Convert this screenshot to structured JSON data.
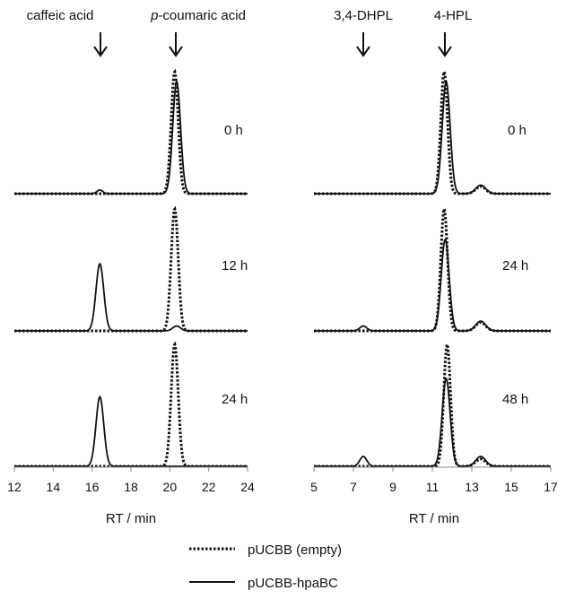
{
  "chart_data": [
    {
      "type": "line",
      "panel": "left",
      "xlabel": "RT / min",
      "xlim": [
        12,
        24
      ],
      "xticks": [
        "12",
        "14",
        "16",
        "18",
        "20",
        "22",
        "24"
      ],
      "markers": [
        {
          "label": "caffeic acid",
          "x": 16.4
        },
        {
          "label": "p-coumaric acid",
          "italic_prefix": "p",
          "rest": "-coumaric acid",
          "x": 20.3
        }
      ],
      "traces": [
        {
          "time_label": "0 h",
          "series": [
            {
              "name": "pUCBB (empty)",
              "style": "dotted",
              "peaks": [
                {
                  "x": 20.25,
                  "height": 1.0,
                  "width": 0.18
                }
              ]
            },
            {
              "name": "pUCBB-hpaBC",
              "style": "solid",
              "peaks": [
                {
                  "x": 16.4,
                  "height": 0.03,
                  "width": 0.15
                },
                {
                  "x": 20.35,
                  "height": 0.92,
                  "width": 0.2
                }
              ]
            }
          ]
        },
        {
          "time_label": "12 h",
          "series": [
            {
              "name": "pUCBB (empty)",
              "style": "dotted",
              "peaks": [
                {
                  "x": 20.25,
                  "height": 1.0,
                  "width": 0.18
                }
              ]
            },
            {
              "name": "pUCBB-hpaBC",
              "style": "solid",
              "peaks": [
                {
                  "x": 16.4,
                  "height": 0.55,
                  "width": 0.2
                },
                {
                  "x": 20.35,
                  "height": 0.04,
                  "width": 0.2
                }
              ]
            }
          ]
        },
        {
          "time_label": "24 h",
          "series": [
            {
              "name": "pUCBB (empty)",
              "style": "dotted",
              "peaks": [
                {
                  "x": 20.25,
                  "height": 1.0,
                  "width": 0.18
                }
              ]
            },
            {
              "name": "pUCBB-hpaBC",
              "style": "solid",
              "peaks": [
                {
                  "x": 16.4,
                  "height": 0.57,
                  "width": 0.2
                }
              ]
            }
          ]
        }
      ]
    },
    {
      "type": "line",
      "panel": "right",
      "xlabel": "RT / min",
      "xlim": [
        5,
        17
      ],
      "xticks": [
        "5",
        "7",
        "9",
        "11",
        "13",
        "15",
        "17"
      ],
      "markers": [
        {
          "label": "3,4-DHPL",
          "x": 7.5
        },
        {
          "label": "4-HPL",
          "x": 11.7
        }
      ],
      "traces": [
        {
          "time_label": "0 h",
          "series": [
            {
              "name": "pUCBB (empty)",
              "style": "dotted",
              "peaks": [
                {
                  "x": 11.6,
                  "height": 1.0,
                  "width": 0.17
                },
                {
                  "x": 13.45,
                  "height": 0.06,
                  "width": 0.25
                }
              ]
            },
            {
              "name": "pUCBB-hpaBC",
              "style": "solid",
              "peaks": [
                {
                  "x": 11.7,
                  "height": 0.92,
                  "width": 0.2
                },
                {
                  "x": 13.45,
                  "height": 0.07,
                  "width": 0.25
                }
              ]
            }
          ]
        },
        {
          "time_label": "24 h",
          "series": [
            {
              "name": "pUCBB (empty)",
              "style": "dotted",
              "peaks": [
                {
                  "x": 11.6,
                  "height": 1.0,
                  "width": 0.17
                },
                {
                  "x": 13.45,
                  "height": 0.07,
                  "width": 0.25
                }
              ]
            },
            {
              "name": "pUCBB-hpaBC",
              "style": "solid",
              "peaks": [
                {
                  "x": 7.5,
                  "height": 0.04,
                  "width": 0.18
                },
                {
                  "x": 11.65,
                  "height": 0.75,
                  "width": 0.2
                },
                {
                  "x": 13.45,
                  "height": 0.08,
                  "width": 0.25
                }
              ]
            }
          ]
        },
        {
          "time_label": "48 h",
          "series": [
            {
              "name": "pUCBB (empty)",
              "style": "dotted",
              "peaks": [
                {
                  "x": 11.75,
                  "height": 1.0,
                  "width": 0.17
                },
                {
                  "x": 13.45,
                  "height": 0.06,
                  "width": 0.25
                }
              ]
            },
            {
              "name": "pUCBB-hpaBC",
              "style": "solid",
              "peaks": [
                {
                  "x": 7.5,
                  "height": 0.08,
                  "width": 0.18
                },
                {
                  "x": 11.7,
                  "height": 0.72,
                  "width": 0.2
                },
                {
                  "x": 13.45,
                  "height": 0.08,
                  "width": 0.25
                }
              ]
            }
          ]
        }
      ]
    }
  ],
  "legend": [
    {
      "style": "dotted",
      "label": "pUCBB (empty)"
    },
    {
      "style": "solid",
      "label": "pUCBB-hpaBC"
    }
  ]
}
